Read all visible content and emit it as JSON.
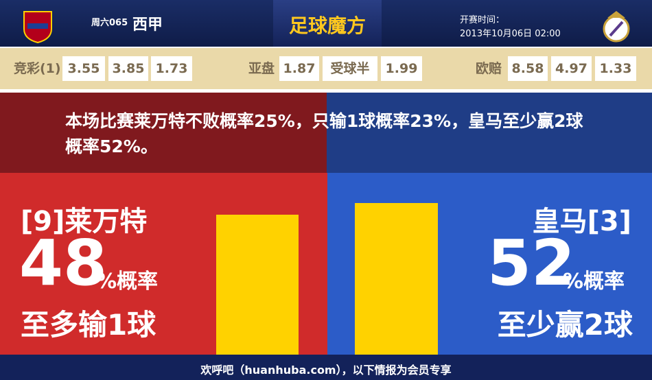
{
  "header": {
    "match_no": "周六065",
    "league": "西甲",
    "brand": "足球魔方",
    "kickoff_label": "开赛时间：",
    "kickoff_time": "2013年10月06日 02:00"
  },
  "odds": [
    {
      "label": "竞彩(1)",
      "values": [
        3.55,
        3.85,
        1.73
      ]
    },
    {
      "label": "亚盘",
      "values": [
        1.87,
        "受球半",
        1.99
      ]
    },
    {
      "label": "欧赔",
      "values": [
        8.58,
        4.97,
        1.33
      ]
    }
  ],
  "summary": "本场比赛莱万特不败概率25%，只输1球概率23%，皇马至少赢2球概率52%。",
  "home": {
    "team": "[9]莱万特",
    "probability": 48,
    "suffix": "%概率",
    "outcome": "至多输1球",
    "color": "#ffd200"
  },
  "away": {
    "team": "皇马[3]",
    "probability": 52,
    "suffix": "%概率",
    "outcome": "至少赢2球",
    "color": "#ffd200"
  },
  "footer": "欢呼吧（huanhuba.com），以下情报为会员专享"
}
